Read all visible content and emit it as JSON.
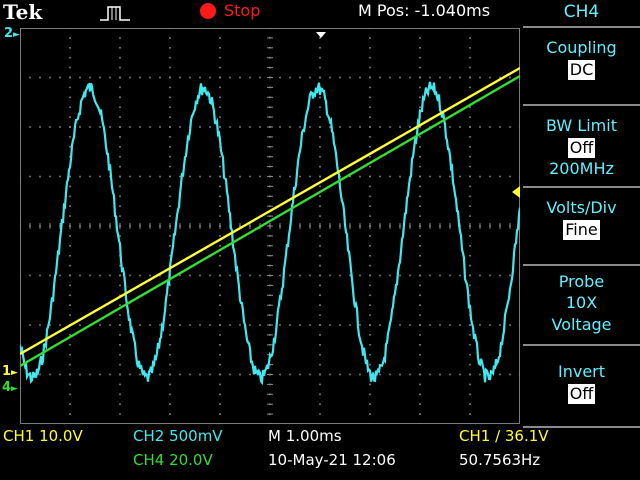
{
  "header": {
    "brand": "Tek",
    "acquisition_state": "Stop",
    "horizontal_position": "M Pos: -1.040ms"
  },
  "screen": {
    "markers": {
      "ch2": "2",
      "ch1": "1",
      "ch4": "4"
    }
  },
  "side_menu": {
    "title": "CH4",
    "coupling": {
      "label": "Coupling",
      "value": "DC"
    },
    "bw_limit": {
      "label": "BW Limit",
      "value": "Off",
      "sub": "200MHz"
    },
    "volts_div": {
      "label": "Volts/Div",
      "value": "Fine"
    },
    "probe": {
      "label": "Probe",
      "line1": "10X",
      "line2": "Voltage"
    },
    "invert": {
      "label": "Invert",
      "value": "Off"
    }
  },
  "status_bar": {
    "ch1_scale": "CH1  10.0V",
    "ch2_scale": "CH2  500mV",
    "ch4_scale": "CH4  20.0V",
    "timebase": "M 1.00ms",
    "date_time": "10-May-21 12:06",
    "trigger": "CH1 ∕ 36.1V",
    "frequency": "50.7563Hz"
  },
  "colors": {
    "ch1": "#ffff33",
    "ch2": "#40e8f0",
    "ch4": "#33dd33",
    "menu_text": "#5ff0ff"
  }
}
